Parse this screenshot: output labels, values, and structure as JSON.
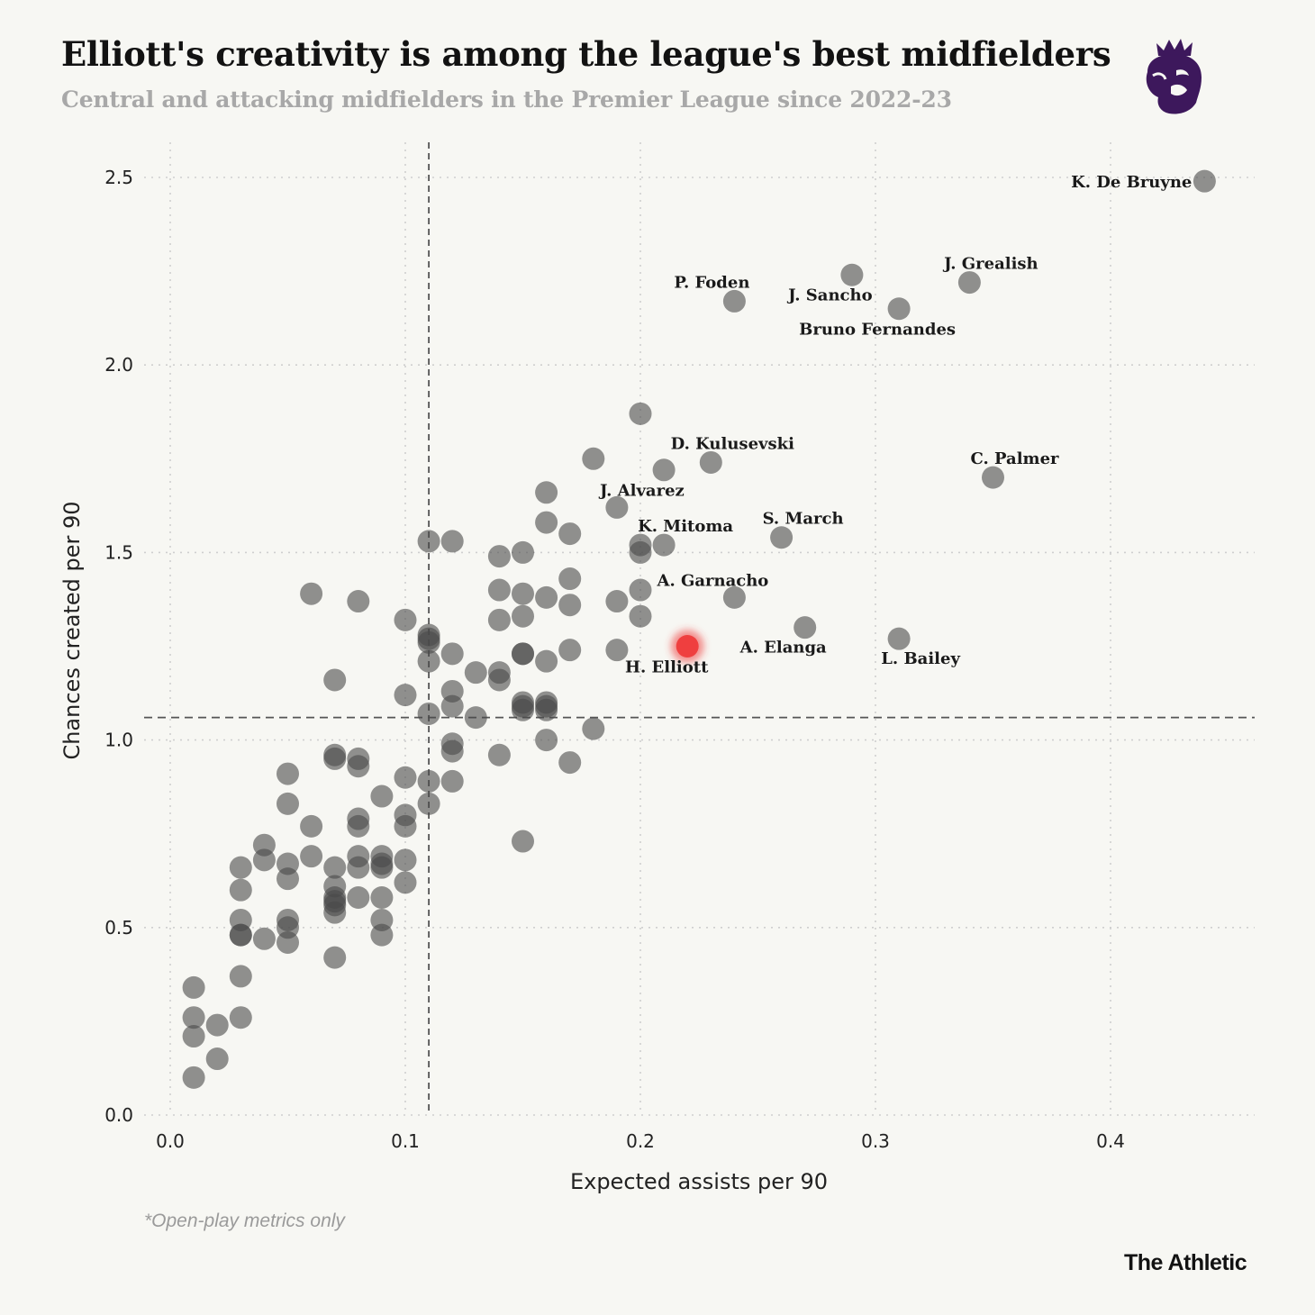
{
  "header": {
    "title": "Elliott's creativity is among the league's best midfielders",
    "subtitle": "Central and attacking midfielders in the Premier League since 2022-23"
  },
  "logo": {
    "icon": "premier-league-lion-icon",
    "color": "#3d185c"
  },
  "footer": {
    "footnote": "*Open-play metrics only",
    "brand": "The Athletic"
  },
  "colors": {
    "point": "#4a4a4a",
    "highlight": "#ee3b3b",
    "grid": "#cfcfcf",
    "reference": "#555555"
  },
  "chart_data": {
    "type": "scatter",
    "xlabel": "Expected assists per 90",
    "ylabel": "Chances created per 90",
    "xlim": [
      0,
      0.46
    ],
    "ylim": [
      0,
      2.6
    ],
    "xticks": [
      "0.0",
      "0.1",
      "0.2",
      "0.3",
      "0.4"
    ],
    "yticks": [
      "0.0",
      "0.5",
      "1.0",
      "1.5",
      "2.0",
      "2.5"
    ],
    "grid": true,
    "reference_lines": {
      "x": 0.11,
      "y": 1.06
    },
    "labeled_points": [
      {
        "label": "K. De Bruyne",
        "x": 0.44,
        "y": 2.49
      },
      {
        "label": "J. Grealish",
        "x": 0.34,
        "y": 2.22
      },
      {
        "label": "P. Foden",
        "x": 0.24,
        "y": 2.17
      },
      {
        "label": "J. Sancho",
        "x": 0.29,
        "y": 2.24
      },
      {
        "label": "Bruno Fernandes",
        "x": 0.31,
        "y": 2.15
      },
      {
        "label": "D. Kulusevski",
        "x": 0.23,
        "y": 1.74
      },
      {
        "label": "C. Palmer",
        "x": 0.35,
        "y": 1.7
      },
      {
        "label": "J. Alvarez",
        "x": 0.19,
        "y": 1.62
      },
      {
        "label": "K. Mitoma",
        "x": 0.21,
        "y": 1.52
      },
      {
        "label": "S. March",
        "x": 0.26,
        "y": 1.54
      },
      {
        "label": "A. Garnacho",
        "x": 0.24,
        "y": 1.38
      },
      {
        "label": "A. Elanga",
        "x": 0.27,
        "y": 1.3
      },
      {
        "label": "L. Bailey",
        "x": 0.31,
        "y": 1.27
      },
      {
        "label": "H. Elliott",
        "x": 0.22,
        "y": 1.25,
        "highlight": true
      }
    ],
    "points": [
      [
        0.01,
        0.34
      ],
      [
        0.01,
        0.26
      ],
      [
        0.01,
        0.21
      ],
      [
        0.01,
        0.1
      ],
      [
        0.02,
        0.24
      ],
      [
        0.02,
        0.15
      ],
      [
        0.03,
        0.66
      ],
      [
        0.03,
        0.6
      ],
      [
        0.03,
        0.52
      ],
      [
        0.03,
        0.48
      ],
      [
        0.03,
        0.48
      ],
      [
        0.03,
        0.37
      ],
      [
        0.03,
        0.26
      ],
      [
        0.04,
        0.72
      ],
      [
        0.04,
        0.68
      ],
      [
        0.04,
        0.47
      ],
      [
        0.05,
        0.91
      ],
      [
        0.05,
        0.83
      ],
      [
        0.05,
        0.67
      ],
      [
        0.05,
        0.63
      ],
      [
        0.05,
        0.52
      ],
      [
        0.05,
        0.5
      ],
      [
        0.05,
        0.46
      ],
      [
        0.06,
        1.39
      ],
      [
        0.06,
        0.77
      ],
      [
        0.06,
        0.69
      ],
      [
        0.07,
        1.16
      ],
      [
        0.07,
        0.96
      ],
      [
        0.07,
        0.95
      ],
      [
        0.07,
        0.66
      ],
      [
        0.07,
        0.61
      ],
      [
        0.07,
        0.58
      ],
      [
        0.07,
        0.57
      ],
      [
        0.07,
        0.56
      ],
      [
        0.07,
        0.54
      ],
      [
        0.07,
        0.42
      ],
      [
        0.08,
        1.37
      ],
      [
        0.08,
        0.95
      ],
      [
        0.08,
        0.93
      ],
      [
        0.08,
        0.79
      ],
      [
        0.08,
        0.77
      ],
      [
        0.08,
        0.69
      ],
      [
        0.08,
        0.66
      ],
      [
        0.08,
        0.58
      ],
      [
        0.09,
        0.85
      ],
      [
        0.09,
        0.69
      ],
      [
        0.09,
        0.67
      ],
      [
        0.09,
        0.66
      ],
      [
        0.09,
        0.58
      ],
      [
        0.09,
        0.52
      ],
      [
        0.09,
        0.48
      ],
      [
        0.1,
        1.32
      ],
      [
        0.1,
        1.12
      ],
      [
        0.1,
        0.9
      ],
      [
        0.1,
        0.8
      ],
      [
        0.1,
        0.77
      ],
      [
        0.1,
        0.68
      ],
      [
        0.1,
        0.62
      ],
      [
        0.11,
        1.53
      ],
      [
        0.11,
        1.28
      ],
      [
        0.11,
        1.27
      ],
      [
        0.11,
        1.26
      ],
      [
        0.11,
        1.21
      ],
      [
        0.11,
        1.07
      ],
      [
        0.11,
        0.89
      ],
      [
        0.11,
        0.83
      ],
      [
        0.12,
        1.53
      ],
      [
        0.12,
        1.23
      ],
      [
        0.12,
        1.13
      ],
      [
        0.12,
        1.09
      ],
      [
        0.12,
        0.99
      ],
      [
        0.12,
        0.97
      ],
      [
        0.12,
        0.89
      ],
      [
        0.13,
        1.18
      ],
      [
        0.13,
        1.06
      ],
      [
        0.14,
        1.49
      ],
      [
        0.14,
        1.4
      ],
      [
        0.14,
        1.32
      ],
      [
        0.14,
        1.18
      ],
      [
        0.14,
        1.16
      ],
      [
        0.14,
        0.96
      ],
      [
        0.15,
        1.5
      ],
      [
        0.15,
        1.39
      ],
      [
        0.15,
        1.33
      ],
      [
        0.15,
        1.23
      ],
      [
        0.15,
        1.23
      ],
      [
        0.15,
        1.1
      ],
      [
        0.15,
        1.09
      ],
      [
        0.15,
        1.08
      ],
      [
        0.15,
        0.73
      ],
      [
        0.16,
        1.66
      ],
      [
        0.16,
        1.58
      ],
      [
        0.16,
        1.38
      ],
      [
        0.16,
        1.21
      ],
      [
        0.16,
        1.1
      ],
      [
        0.16,
        1.09
      ],
      [
        0.16,
        1.08
      ],
      [
        0.16,
        1.0
      ],
      [
        0.17,
        1.55
      ],
      [
        0.17,
        1.43
      ],
      [
        0.17,
        1.36
      ],
      [
        0.17,
        1.24
      ],
      [
        0.17,
        0.94
      ],
      [
        0.18,
        1.75
      ],
      [
        0.18,
        1.03
      ],
      [
        0.19,
        1.37
      ],
      [
        0.19,
        1.24
      ],
      [
        0.2,
        1.87
      ],
      [
        0.2,
        1.52
      ],
      [
        0.2,
        1.5
      ],
      [
        0.2,
        1.4
      ],
      [
        0.2,
        1.33
      ],
      [
        0.21,
        1.72
      ]
    ]
  }
}
